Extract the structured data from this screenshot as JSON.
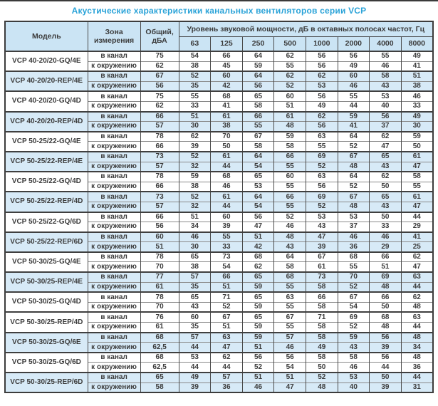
{
  "title": "Акустические характеристики канальных вентиляторов  серии VCP",
  "table": {
    "headers": {
      "model": "Модель",
      "zone": "Зона измерения",
      "total": "Общий, дБА",
      "band_group": "Уровень звуковой мощности, дБ в октавных полосах частот, Гц",
      "bands": [
        "63",
        "125",
        "250",
        "500",
        "1000",
        "2000",
        "4000",
        "8000"
      ]
    },
    "zone_labels": {
      "in": "в канал",
      "out": "к окружению"
    },
    "colors": {
      "title_accent": "#2aa3d8",
      "header_bg": "#cbe4f4",
      "highlight_row_bg": "#d7eaf7",
      "border": "#4a4a4a",
      "text": "#3b3b3b"
    },
    "rows": [
      {
        "model": "VCP 40-20/20-GQ/4E",
        "highlight": false,
        "in_total": "75",
        "in_bands": [
          "54",
          "66",
          "64",
          "62",
          "56",
          "56",
          "55",
          "49"
        ],
        "out_total": "62",
        "out_bands": [
          "38",
          "45",
          "59",
          "55",
          "56",
          "49",
          "46",
          "41"
        ]
      },
      {
        "model": "VCP 40-20/20-REP/4E",
        "highlight": true,
        "in_total": "67",
        "in_bands": [
          "52",
          "60",
          "64",
          "62",
          "62",
          "60",
          "58",
          "51"
        ],
        "out_total": "56",
        "out_bands": [
          "35",
          "42",
          "56",
          "52",
          "53",
          "46",
          "43",
          "38"
        ]
      },
      {
        "model": "VCP 40-20/20-GQ/4D",
        "highlight": false,
        "in_total": "75",
        "in_bands": [
          "55",
          "68",
          "65",
          "60",
          "56",
          "55",
          "53",
          "46"
        ],
        "out_total": "62",
        "out_bands": [
          "33",
          "41",
          "58",
          "51",
          "49",
          "44",
          "40",
          "33"
        ]
      },
      {
        "model": "VCP 40-20/20-REP/4D",
        "highlight": true,
        "in_total": "66",
        "in_bands": [
          "51",
          "61",
          "66",
          "61",
          "62",
          "59",
          "56",
          "49"
        ],
        "out_total": "57",
        "out_bands": [
          "30",
          "38",
          "55",
          "48",
          "56",
          "41",
          "37",
          "30"
        ]
      },
      {
        "model": "VCP 50-25/22-GQ/4E",
        "highlight": false,
        "in_total": "78",
        "in_bands": [
          "62",
          "70",
          "67",
          "59",
          "63",
          "64",
          "62",
          "59"
        ],
        "out_total": "66",
        "out_bands": [
          "39",
          "50",
          "58",
          "58",
          "55",
          "52",
          "47",
          "50"
        ]
      },
      {
        "model": "VCP 50-25/22-REP/4E",
        "highlight": true,
        "in_total": "73",
        "in_bands": [
          "52",
          "61",
          "64",
          "66",
          "69",
          "67",
          "65",
          "61"
        ],
        "out_total": "57",
        "out_bands": [
          "32",
          "44",
          "54",
          "55",
          "52",
          "48",
          "43",
          "47"
        ]
      },
      {
        "model": "VCP 50-25/22-GQ/4D",
        "highlight": false,
        "in_total": "78",
        "in_bands": [
          "59",
          "68",
          "65",
          "60",
          "63",
          "64",
          "62",
          "58"
        ],
        "out_total": "66",
        "out_bands": [
          "38",
          "46",
          "53",
          "55",
          "56",
          "52",
          "50",
          "55"
        ]
      },
      {
        "model": "VCP 50-25/22-REP/4D",
        "highlight": true,
        "in_total": "73",
        "in_bands": [
          "52",
          "61",
          "64",
          "66",
          "69",
          "67",
          "65",
          "61"
        ],
        "out_total": "57",
        "out_bands": [
          "32",
          "44",
          "54",
          "55",
          "52",
          "48",
          "43",
          "47"
        ]
      },
      {
        "model": "VCP 50-25/22-GQ/6D",
        "highlight": false,
        "in_total": "66",
        "in_bands": [
          "51",
          "60",
          "56",
          "52",
          "53",
          "53",
          "50",
          "44"
        ],
        "out_total": "56",
        "out_bands": [
          "34",
          "39",
          "47",
          "46",
          "43",
          "37",
          "33",
          "29"
        ]
      },
      {
        "model": "VCP 50-25/22-REP/6D",
        "highlight": true,
        "in_total": "60",
        "in_bands": [
          "46",
          "55",
          "51",
          "48",
          "47",
          "46",
          "46",
          "41"
        ],
        "out_total": "51",
        "out_bands": [
          "30",
          "33",
          "42",
          "43",
          "39",
          "36",
          "29",
          "25"
        ]
      },
      {
        "model": "VCP 50-30/25-GQ/4E",
        "highlight": false,
        "in_total": "78",
        "in_bands": [
          "65",
          "73",
          "68",
          "64",
          "67",
          "68",
          "66",
          "62"
        ],
        "out_total": "70",
        "out_bands": [
          "38",
          "54",
          "62",
          "58",
          "61",
          "55",
          "51",
          "47"
        ]
      },
      {
        "model": "VCP 50-30/25-REP/4E",
        "highlight": true,
        "in_total": "77",
        "in_bands": [
          "57",
          "66",
          "65",
          "68",
          "73",
          "70",
          "69",
          "63"
        ],
        "out_total": "61",
        "out_bands": [
          "35",
          "51",
          "59",
          "55",
          "58",
          "52",
          "48",
          "44"
        ]
      },
      {
        "model": "VCP 50-30/25-GQ/4D",
        "highlight": false,
        "in_total": "78",
        "in_bands": [
          "65",
          "71",
          "65",
          "63",
          "66",
          "67",
          "66",
          "62"
        ],
        "out_total": "70",
        "out_bands": [
          "43",
          "52",
          "59",
          "55",
          "58",
          "54",
          "50",
          "48"
        ]
      },
      {
        "model": "VCP 50-30/25-REP/4D",
        "highlight": false,
        "in_total": "76",
        "in_bands": [
          "60",
          "67",
          "65",
          "67",
          "71",
          "69",
          "68",
          "63"
        ],
        "out_total": "61",
        "out_bands": [
          "35",
          "51",
          "59",
          "55",
          "58",
          "52",
          "48",
          "44"
        ]
      },
      {
        "model": "VCP 50-30/25-GQ/6E",
        "highlight": true,
        "in_total": "68",
        "in_bands": [
          "57",
          "63",
          "59",
          "57",
          "58",
          "59",
          "56",
          "48"
        ],
        "out_total": "62,5",
        "out_bands": [
          "44",
          "47",
          "51",
          "46",
          "49",
          "43",
          "39",
          "34"
        ]
      },
      {
        "model": "VCP 50-30/25-GQ/6D",
        "highlight": false,
        "in_total": "68",
        "in_bands": [
          "53",
          "62",
          "56",
          "56",
          "58",
          "58",
          "56",
          "48"
        ],
        "out_total": "62,5",
        "out_bands": [
          "44",
          "44",
          "52",
          "54",
          "50",
          "46",
          "44",
          "36"
        ]
      },
      {
        "model": "VCP 50-30/25-REP/6D",
        "highlight": true,
        "in_total": "65",
        "in_bands": [
          "49",
          "57",
          "51",
          "51",
          "52",
          "53",
          "50",
          "44"
        ],
        "out_total": "58",
        "out_bands": [
          "39",
          "36",
          "46",
          "47",
          "48",
          "40",
          "39",
          "31"
        ]
      }
    ]
  }
}
